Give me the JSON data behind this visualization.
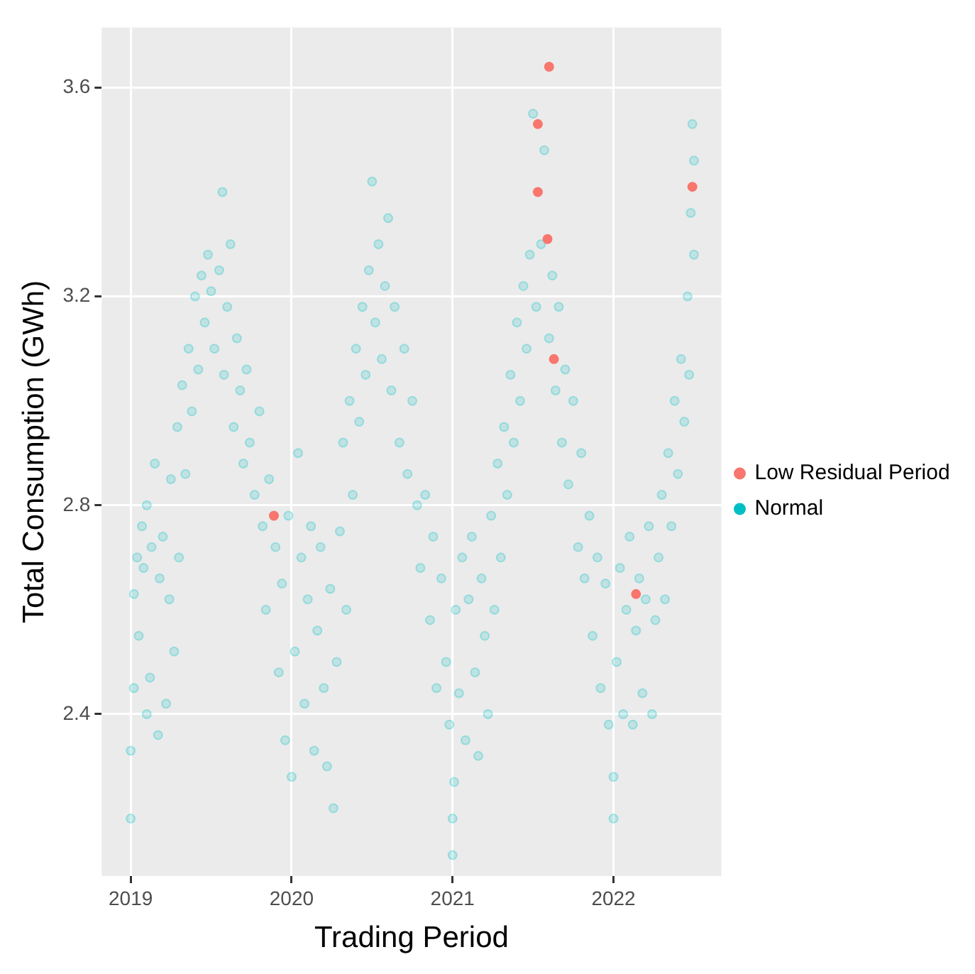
{
  "chart_data": {
    "type": "scatter",
    "xlabel": "Trading Period",
    "ylabel": "Total Consumption (GWh)",
    "xlim": [
      2018.82,
      2022.67
    ],
    "xticks": [
      2019,
      2020,
      2021,
      2022
    ],
    "ylim": [
      2.09,
      3.715
    ],
    "yticks": [
      {
        "value": 2.4,
        "label": "2.4"
      },
      {
        "value": 2.8,
        "label": "2.8"
      },
      {
        "value": 3.2,
        "label": "3.2"
      },
      {
        "value": 3.6,
        "label": "3.6"
      }
    ],
    "grid": true,
    "legend": "right",
    "marker": "circle",
    "series": [
      {
        "name": "Low Residual Period",
        "color": "#f8766d",
        "x": [
          2019.89,
          2021.53,
          2021.6,
          2021.53,
          2021.59,
          2021.63,
          2022.14,
          2022.49
        ],
        "values": [
          2.78,
          3.53,
          3.64,
          3.4,
          3.31,
          3.08,
          2.63,
          3.41
        ]
      },
      {
        "name": "Normal",
        "color": "#00bfc4",
        "x": [
          2019.0,
          2019.0,
          2019.02,
          2019.02,
          2019.04,
          2019.05,
          2019.07,
          2019.08,
          2019.1,
          2019.1,
          2019.12,
          2019.13,
          2019.15,
          2019.17,
          2019.18,
          2019.2,
          2019.22,
          2019.24,
          2019.25,
          2019.27,
          2019.29,
          2019.3,
          2019.32,
          2019.34,
          2019.36,
          2019.38,
          2019.4,
          2019.42,
          2019.44,
          2019.46,
          2019.48,
          2019.5,
          2019.52,
          2019.55,
          2019.57,
          2019.58,
          2019.6,
          2019.62,
          2019.64,
          2019.66,
          2019.68,
          2019.7,
          2019.72,
          2019.74,
          2019.77,
          2019.8,
          2019.82,
          2019.84,
          2019.86,
          2019.9,
          2019.92,
          2019.94,
          2019.96,
          2019.98,
          2020.0,
          2020.02,
          2020.04,
          2020.06,
          2020.08,
          2020.1,
          2020.12,
          2020.14,
          2020.16,
          2020.18,
          2020.2,
          2020.22,
          2020.24,
          2020.26,
          2020.28,
          2020.3,
          2020.32,
          2020.34,
          2020.36,
          2020.38,
          2020.4,
          2020.42,
          2020.44,
          2020.46,
          2020.48,
          2020.5,
          2020.52,
          2020.54,
          2020.56,
          2020.58,
          2020.6,
          2020.62,
          2020.64,
          2020.67,
          2020.7,
          2020.72,
          2020.75,
          2020.78,
          2020.8,
          2020.83,
          2020.86,
          2020.88,
          2020.9,
          2020.93,
          2020.96,
          2020.98,
          2021.0,
          2021.0,
          2021.01,
          2021.02,
          2021.04,
          2021.06,
          2021.08,
          2021.1,
          2021.12,
          2021.14,
          2021.16,
          2021.18,
          2021.2,
          2021.22,
          2021.24,
          2021.26,
          2021.28,
          2021.3,
          2021.32,
          2021.34,
          2021.36,
          2021.38,
          2021.4,
          2021.42,
          2021.44,
          2021.46,
          2021.48,
          2021.5,
          2021.52,
          2021.55,
          2021.57,
          2021.6,
          2021.62,
          2021.64,
          2021.66,
          2021.68,
          2021.7,
          2021.72,
          2021.75,
          2021.78,
          2021.8,
          2021.82,
          2021.85,
          2021.87,
          2021.9,
          2021.92,
          2021.95,
          2021.97,
          2022.0,
          2022.0,
          2022.02,
          2022.04,
          2022.06,
          2022.08,
          2022.1,
          2022.12,
          2022.14,
          2022.16,
          2022.18,
          2022.2,
          2022.22,
          2022.24,
          2022.26,
          2022.28,
          2022.3,
          2022.32,
          2022.34,
          2022.36,
          2022.38,
          2022.4,
          2022.42,
          2022.44,
          2022.46,
          2022.47,
          2022.48,
          2022.49,
          2022.5,
          2022.5
        ],
        "values": [
          2.2,
          2.33,
          2.45,
          2.63,
          2.7,
          2.55,
          2.76,
          2.68,
          2.4,
          2.8,
          2.47,
          2.72,
          2.88,
          2.36,
          2.66,
          2.74,
          2.42,
          2.62,
          2.85,
          2.52,
          2.95,
          2.7,
          3.03,
          2.86,
          3.1,
          2.98,
          3.2,
          3.06,
          3.24,
          3.15,
          3.28,
          3.21,
          3.1,
          3.25,
          3.4,
          3.05,
          3.18,
          3.3,
          2.95,
          3.12,
          3.02,
          2.88,
          3.06,
          2.92,
          2.82,
          2.98,
          2.76,
          2.6,
          2.85,
          2.72,
          2.48,
          2.65,
          2.35,
          2.78,
          2.28,
          2.52,
          2.9,
          2.7,
          2.42,
          2.62,
          2.76,
          2.33,
          2.56,
          2.72,
          2.45,
          2.3,
          2.64,
          2.22,
          2.5,
          2.75,
          2.92,
          2.6,
          3.0,
          2.82,
          3.1,
          2.96,
          3.18,
          3.05,
          3.25,
          3.42,
          3.15,
          3.3,
          3.08,
          3.22,
          3.35,
          3.02,
          3.18,
          2.92,
          3.1,
          2.86,
          3.0,
          2.8,
          2.68,
          2.82,
          2.58,
          2.74,
          2.45,
          2.66,
          2.5,
          2.38,
          2.13,
          2.2,
          2.27,
          2.6,
          2.44,
          2.7,
          2.35,
          2.62,
          2.74,
          2.48,
          2.32,
          2.66,
          2.55,
          2.4,
          2.78,
          2.6,
          2.88,
          2.7,
          2.95,
          2.82,
          3.05,
          2.92,
          3.15,
          3.0,
          3.22,
          3.1,
          3.28,
          3.55,
          3.18,
          3.3,
          3.48,
          3.12,
          3.24,
          3.02,
          3.18,
          2.92,
          3.06,
          2.84,
          3.0,
          2.72,
          2.9,
          2.66,
          2.78,
          2.55,
          2.7,
          2.45,
          2.65,
          2.38,
          2.2,
          2.28,
          2.5,
          2.68,
          2.4,
          2.6,
          2.74,
          2.38,
          2.56,
          2.66,
          2.44,
          2.62,
          2.76,
          2.4,
          2.58,
          2.7,
          2.82,
          2.62,
          2.9,
          2.76,
          3.0,
          2.86,
          3.08,
          2.96,
          3.2,
          3.05,
          3.36,
          3.53,
          3.46,
          3.28
        ]
      }
    ]
  }
}
